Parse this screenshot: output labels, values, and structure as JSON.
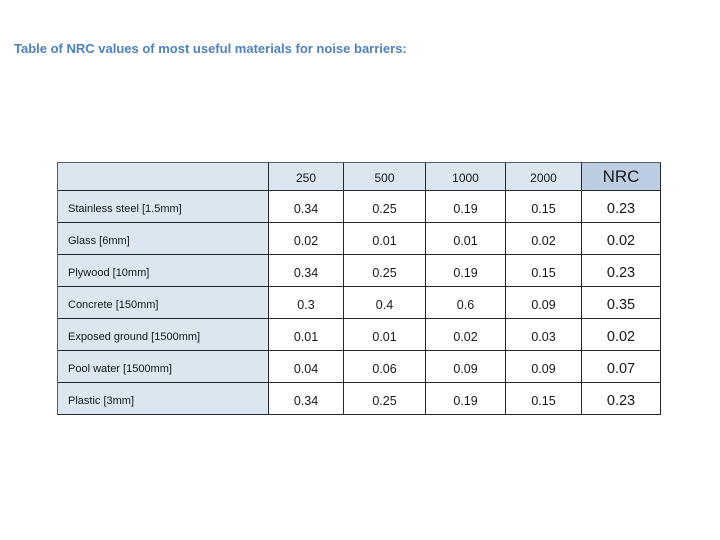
{
  "title": "Table of NRC values of most useful materials for noise barriers:",
  "colors": {
    "title_text": "#4f81bd",
    "header_cell_bg": "#dce6f1",
    "nrc_header_bg": "#bccde2",
    "table_border": "#23272e",
    "value_text": "#15181c",
    "page_bg": "#ffffff"
  },
  "table": {
    "columns": [
      "",
      "250",
      "500",
      "1000",
      "2000",
      "NRC"
    ],
    "rows": [
      {
        "label": "Stainless steel [1.5mm]",
        "values": [
          "0.34",
          "0.25",
          "0.19",
          "0.15",
          "0.23"
        ]
      },
      {
        "label": "Glass [6mm]",
        "values": [
          "0.02",
          "0.01",
          "0.01",
          "0.02",
          "0.02"
        ]
      },
      {
        "label": "Plywood [10mm]",
        "values": [
          "0.34",
          "0.25",
          "0.19",
          "0.15",
          "0.23"
        ]
      },
      {
        "label": "Concrete [150mm]",
        "values": [
          "0.3",
          "0.4",
          "0.6",
          "0.09",
          "0.35"
        ]
      },
      {
        "label": "Exposed ground [1500mm]",
        "values": [
          "0.01",
          "0.01",
          "0.02",
          "0.03",
          "0.02"
        ]
      },
      {
        "label": "Pool water [1500mm]",
        "values": [
          "0.04",
          "0.06",
          "0.09",
          "0.09",
          "0.07"
        ]
      },
      {
        "label": "Plastic [3mm]",
        "values": [
          "0.34",
          "0.25",
          "0.19",
          "0.15",
          "0.23"
        ]
      }
    ]
  }
}
